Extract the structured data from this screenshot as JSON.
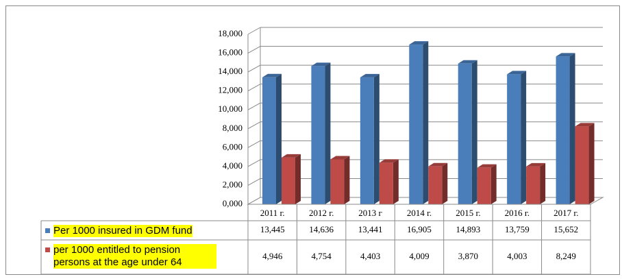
{
  "chart_data": {
    "type": "bar3d",
    "categories": [
      "2011 г.",
      "2012 г.",
      "2013 г",
      "2014 г.",
      "2015 г.",
      "2016 г.",
      "2017 г."
    ],
    "series": [
      {
        "name": "Per 1000 insured in GDM fund",
        "color": "#4a7ebb",
        "values": [
          13.445,
          14.636,
          13.441,
          16.905,
          14.893,
          13.759,
          15.652
        ],
        "value_labels": [
          "13,445",
          "14,636",
          "13,441",
          "16,905",
          "14,893",
          "13,759",
          "15,652"
        ]
      },
      {
        "name": "per 1000 entitled to pension persons at the age under 64",
        "color": "#be4b48",
        "values": [
          4.946,
          4.754,
          4.403,
          4.009,
          3.87,
          4.003,
          8.249
        ],
        "value_labels": [
          "4,946",
          "4,754",
          "4,403",
          "4,009",
          "3,870",
          "4,003",
          "8,249"
        ]
      }
    ],
    "ylim": [
      0,
      18
    ],
    "yticks": [
      {
        "value": 0,
        "label": "0,000"
      },
      {
        "value": 2,
        "label": "2,000"
      },
      {
        "value": 4,
        "label": "4,000"
      },
      {
        "value": 6,
        "label": "6,000"
      },
      {
        "value": 8,
        "label": "8,000"
      },
      {
        "value": 10,
        "label": "10,000"
      },
      {
        "value": 12,
        "label": "12,000"
      },
      {
        "value": 14,
        "label": "14,000"
      },
      {
        "value": 16,
        "label": "16,000"
      },
      {
        "value": 18,
        "label": "18,000"
      }
    ],
    "grid": true
  }
}
